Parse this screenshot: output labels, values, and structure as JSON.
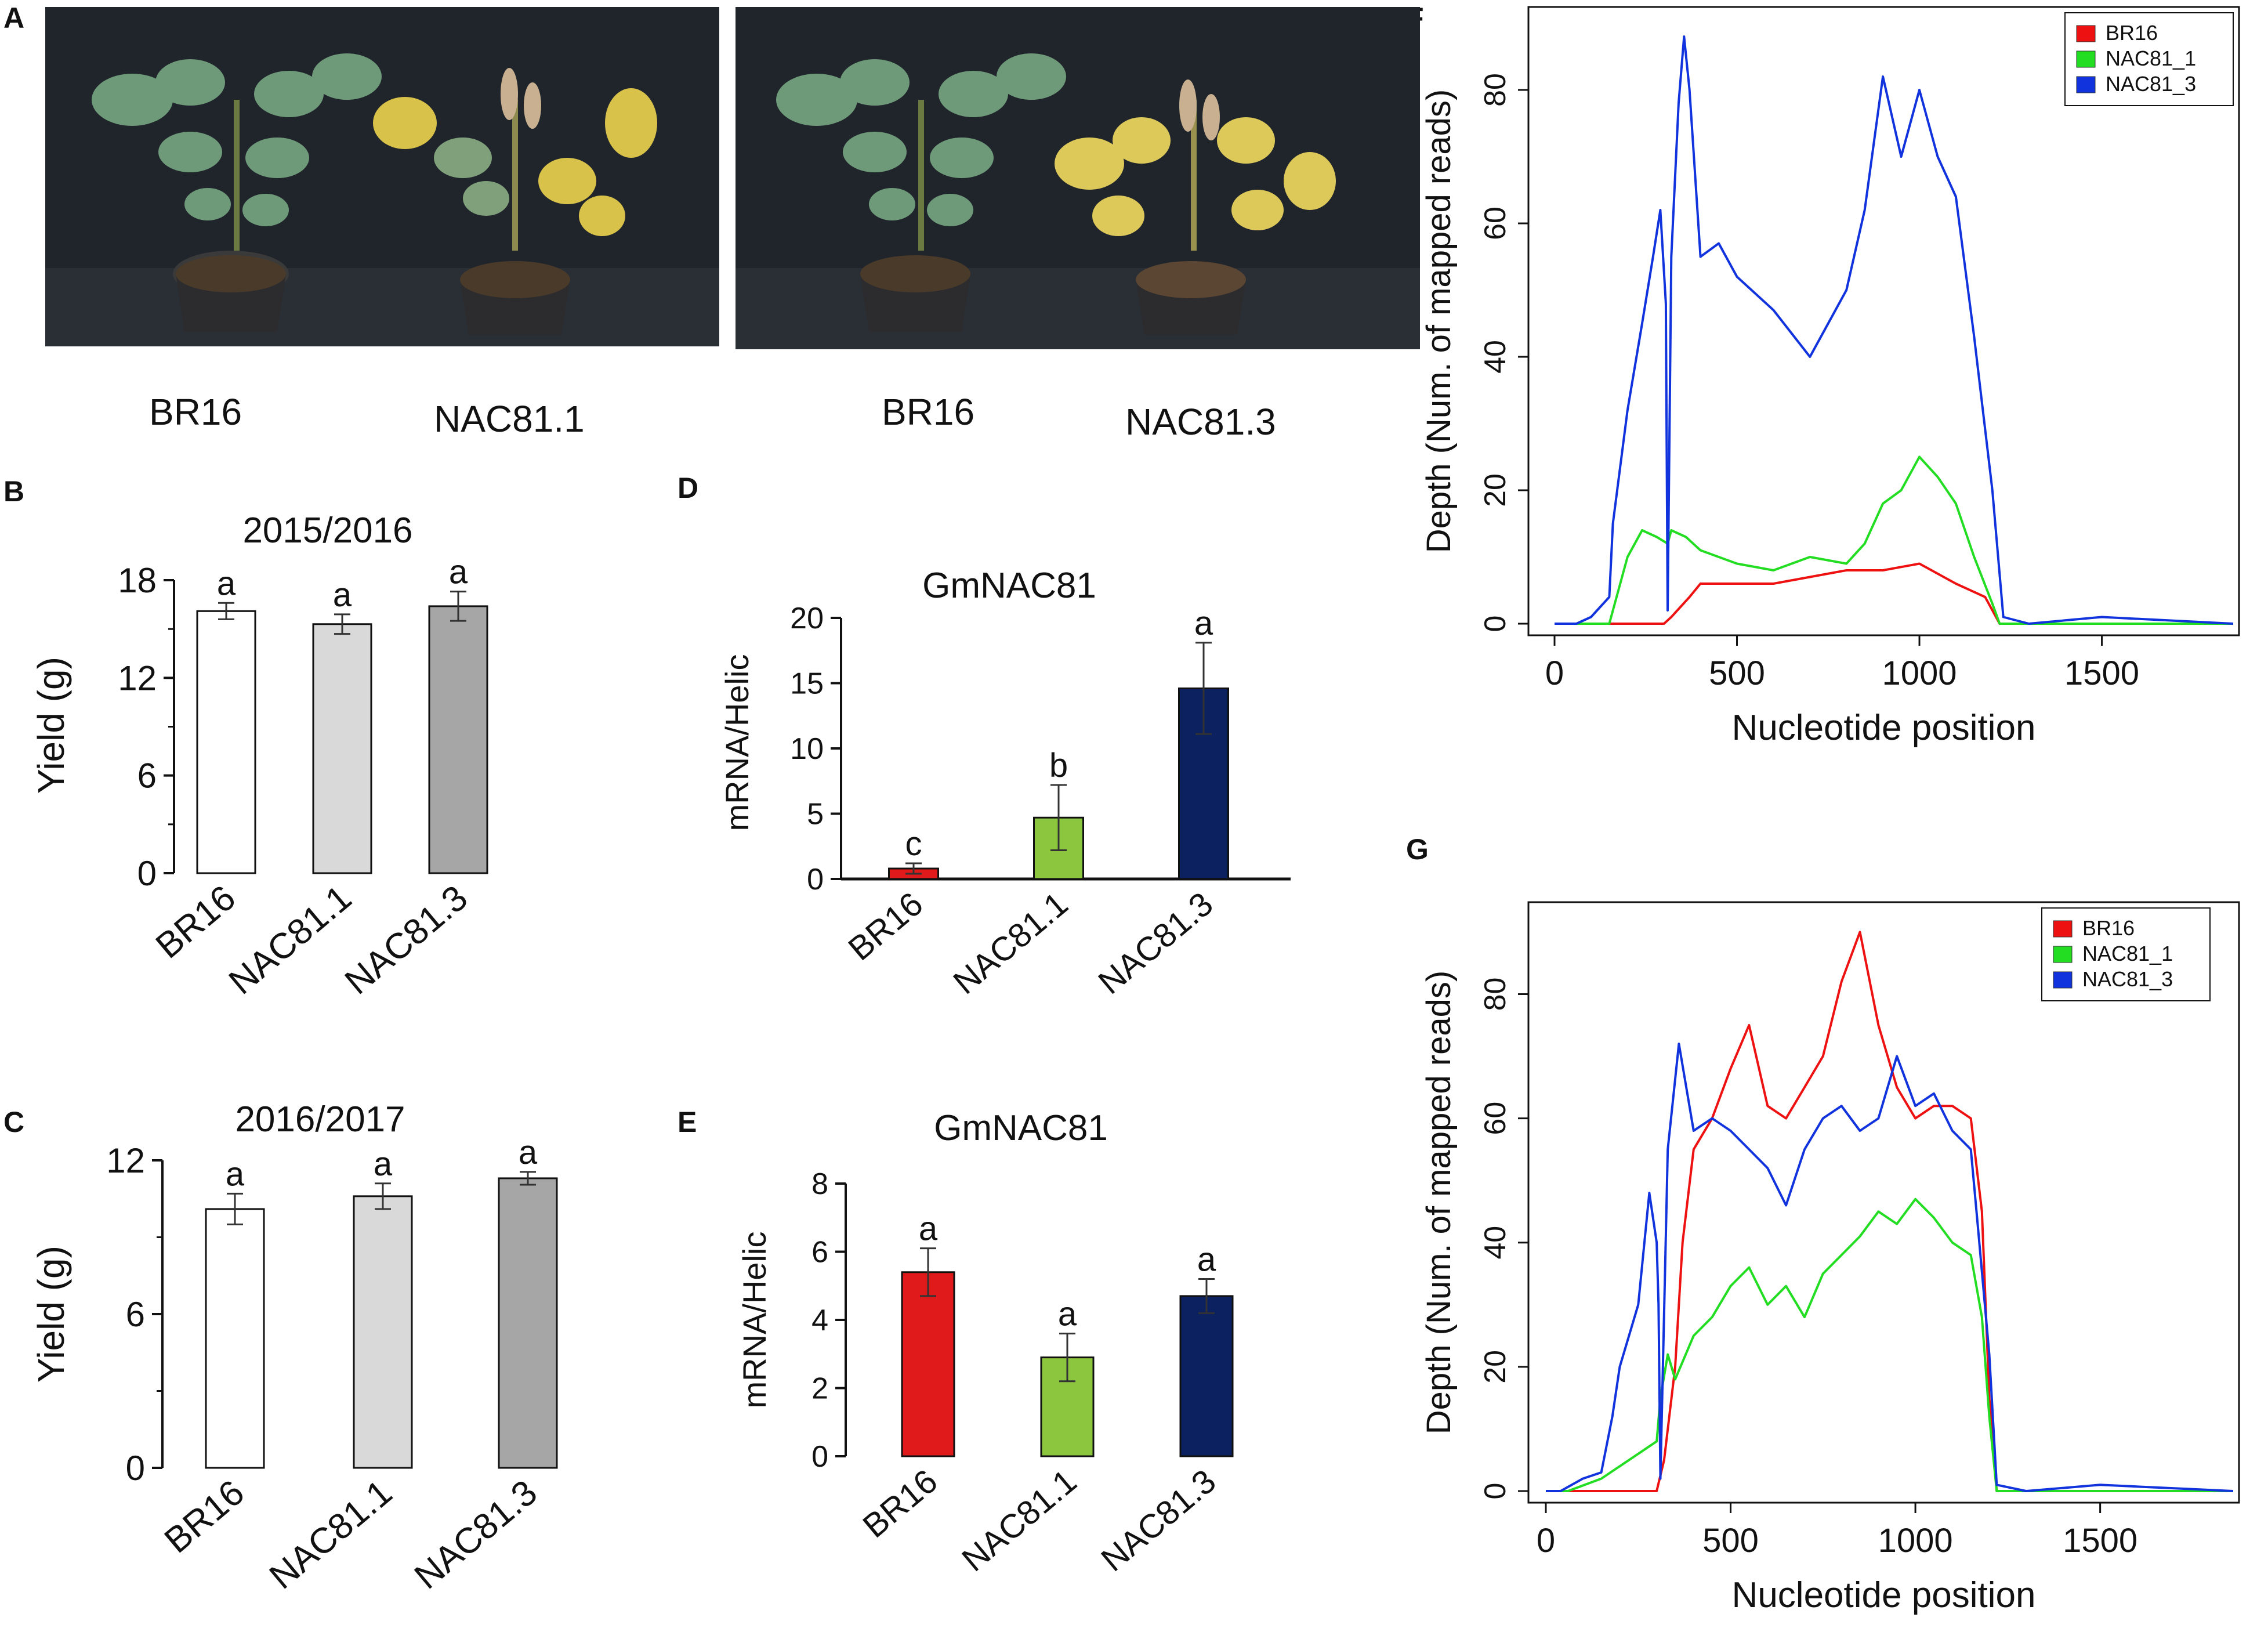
{
  "panel_labels": {
    "A": "A",
    "B": "B",
    "C": "C",
    "D": "D",
    "E": "E",
    "F": "F",
    "G": "G"
  },
  "photos": {
    "left": {
      "caption_left": "BR16",
      "caption_right": "NAC81.1"
    },
    "right": {
      "caption_left": "BR16",
      "caption_right": "NAC81.3"
    }
  },
  "colors": {
    "BR16": "#ee1111",
    "NAC81_1": "#22dd22",
    "NAC81_3": "#1133dd",
    "D_BR16": "#e01a1a",
    "D_NAC81_1": "#8cc63f",
    "D_NAC81_3": "#0b2160",
    "white_bar": "#ffffff",
    "light_bar": "#d9d9d9",
    "dark_bar": "#a6a6a6"
  },
  "chart_data": [
    {
      "id": "B",
      "type": "bar",
      "title": "2015/2016",
      "ylabel": "Yield (g)",
      "categories": [
        "BR16",
        "NAC81.1",
        "NAC81.3"
      ],
      "values": [
        16.1,
        15.3,
        16.4
      ],
      "errors": [
        0.5,
        0.6,
        0.9
      ],
      "letters": [
        "a",
        "a",
        "a"
      ],
      "ylim": [
        0,
        18
      ],
      "yticks": [
        0,
        6,
        12,
        18
      ]
    },
    {
      "id": "C",
      "type": "bar",
      "title": "2016/2017",
      "ylabel": "Yield (g)",
      "categories": [
        "BR16",
        "NAC81.1",
        "NAC81.3"
      ],
      "values": [
        10.1,
        10.6,
        11.3
      ],
      "errors": [
        0.6,
        0.5,
        0.25
      ],
      "letters": [
        "a",
        "a",
        "a"
      ],
      "ylim": [
        0,
        12
      ],
      "yticks": [
        0,
        6,
        12
      ]
    },
    {
      "id": "D",
      "type": "bar",
      "title": "GmNAC81",
      "ylabel": "mRNA/Helic",
      "categories": [
        "BR16",
        "NAC81.1",
        "NAC81.3"
      ],
      "values": [
        0.8,
        4.7,
        14.6
      ],
      "errors": [
        0.4,
        2.5,
        3.5
      ],
      "letters": [
        "c",
        "b",
        "a"
      ],
      "ylim": [
        0,
        20
      ],
      "yticks": [
        0,
        5,
        10,
        15,
        20
      ]
    },
    {
      "id": "E",
      "type": "bar",
      "title": "GmNAC81",
      "ylabel": "mRNA/Helic",
      "categories": [
        "BR16",
        "NAC81.1",
        "NAC81.3"
      ],
      "values": [
        5.4,
        2.9,
        4.7
      ],
      "errors": [
        0.7,
        0.7,
        0.5
      ],
      "letters": [
        "a",
        "a",
        "a"
      ],
      "ylim": [
        0,
        8
      ],
      "yticks": [
        0,
        2,
        4,
        6,
        8
      ]
    },
    {
      "id": "F",
      "type": "line",
      "xlabel": "Nucleotide position",
      "ylabel": "Depth (Num. of mapped reads)",
      "xlim": [
        0,
        1860
      ],
      "ylim": [
        0,
        90
      ],
      "xticks": [
        0,
        500,
        1000,
        1500
      ],
      "yticks": [
        0,
        20,
        40,
        60,
        80
      ],
      "legend": [
        "BR16",
        "NAC81_1",
        "NAC81_3"
      ],
      "series": [
        {
          "name": "BR16",
          "x": [
            0,
            300,
            320,
            370,
            400,
            500,
            600,
            700,
            800,
            900,
            1000,
            1100,
            1180,
            1220,
            1300,
            1500,
            1860
          ],
          "y": [
            0,
            0,
            1,
            4,
            6,
            6,
            6,
            7,
            8,
            8,
            9,
            6,
            4,
            0,
            0,
            0,
            0
          ]
        },
        {
          "name": "NAC81_1",
          "x": [
            0,
            150,
            200,
            240,
            280,
            310,
            320,
            360,
            400,
            500,
            600,
            700,
            800,
            850,
            900,
            950,
            1000,
            1050,
            1100,
            1150,
            1200,
            1220,
            1300,
            1500,
            1860
          ],
          "y": [
            0,
            0,
            10,
            14,
            13,
            12,
            14,
            13,
            11,
            9,
            8,
            10,
            9,
            12,
            18,
            20,
            25,
            22,
            18,
            10,
            3,
            0,
            0,
            0,
            0
          ]
        },
        {
          "name": "NAC81_3",
          "x": [
            0,
            60,
            100,
            150,
            160,
            200,
            240,
            270,
            290,
            305,
            310,
            320,
            340,
            355,
            370,
            400,
            450,
            500,
            600,
            700,
            800,
            850,
            900,
            950,
            1000,
            1050,
            1100,
            1150,
            1200,
            1230,
            1300,
            1500,
            1860
          ],
          "y": [
            0,
            0,
            1,
            4,
            15,
            32,
            45,
            55,
            62,
            48,
            2,
            55,
            78,
            88,
            80,
            55,
            57,
            52,
            47,
            40,
            50,
            62,
            82,
            70,
            80,
            70,
            64,
            43,
            20,
            1,
            0,
            1,
            0
          ]
        }
      ]
    },
    {
      "id": "G",
      "type": "line",
      "xlabel": "Nucleotide position",
      "ylabel": "Depth (Num. of mapped reads)",
      "xlim": [
        0,
        1860
      ],
      "ylim": [
        0,
        92
      ],
      "xticks": [
        0,
        500,
        1000,
        1500
      ],
      "yticks": [
        0,
        20,
        40,
        60,
        80
      ],
      "legend": [
        "BR16",
        "NAC81_1",
        "NAC81_3"
      ],
      "series": [
        {
          "name": "BR16",
          "x": [
            0,
            300,
            320,
            350,
            370,
            400,
            450,
            500,
            550,
            600,
            650,
            700,
            750,
            800,
            850,
            900,
            950,
            1000,
            1050,
            1100,
            1150,
            1180,
            1200,
            1220,
            1300,
            1860
          ],
          "y": [
            0,
            0,
            5,
            20,
            40,
            55,
            60,
            68,
            75,
            62,
            60,
            65,
            70,
            82,
            90,
            75,
            65,
            60,
            62,
            62,
            60,
            45,
            15,
            0,
            0,
            0
          ]
        },
        {
          "name": "NAC81_1",
          "x": [
            0,
            60,
            150,
            250,
            300,
            310,
            330,
            350,
            400,
            450,
            500,
            550,
            600,
            650,
            700,
            750,
            800,
            850,
            900,
            950,
            1000,
            1050,
            1100,
            1150,
            1180,
            1200,
            1220,
            1300,
            1860
          ],
          "y": [
            0,
            0,
            2,
            6,
            8,
            15,
            22,
            18,
            25,
            28,
            33,
            36,
            30,
            33,
            28,
            35,
            38,
            41,
            45,
            43,
            47,
            44,
            40,
            38,
            28,
            12,
            0,
            0,
            0
          ]
        },
        {
          "name": "NAC81_3",
          "x": [
            0,
            40,
            100,
            150,
            180,
            200,
            250,
            280,
            300,
            305,
            310,
            330,
            360,
            380,
            400,
            450,
            500,
            550,
            600,
            650,
            700,
            750,
            800,
            850,
            900,
            950,
            1000,
            1050,
            1100,
            1150,
            1170,
            1200,
            1220,
            1300,
            1500,
            1860
          ],
          "y": [
            0,
            0,
            2,
            3,
            12,
            20,
            30,
            48,
            40,
            30,
            2,
            55,
            72,
            65,
            58,
            60,
            58,
            55,
            52,
            46,
            55,
            60,
            62,
            58,
            60,
            70,
            62,
            64,
            58,
            55,
            42,
            22,
            1,
            0,
            1,
            0
          ]
        }
      ]
    }
  ]
}
